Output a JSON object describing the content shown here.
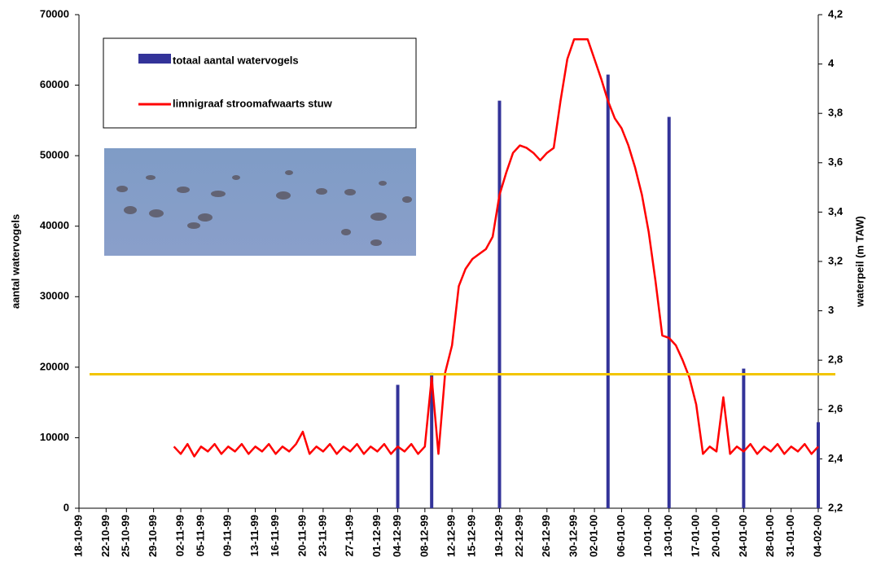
{
  "chart_data": {
    "type": "combo",
    "y_label": "aantal watervogels",
    "y2_label": "waterpeil (m TAW)",
    "xlim": [
      "18-10-99",
      "04-02-00"
    ],
    "xticks": [
      "18-10-99",
      "22-10-99",
      "25-10-99",
      "29-10-99",
      "02-11-99",
      "05-11-99",
      "09-11-99",
      "13-11-99",
      "16-11-99",
      "20-11-99",
      "23-11-99",
      "27-11-99",
      "01-12-99",
      "04-12-99",
      "08-12-99",
      "12-12-99",
      "15-12-99",
      "19-12-99",
      "22-12-99",
      "26-12-99",
      "30-12-99",
      "02-01-00",
      "06-01-00",
      "10-01-00",
      "13-01-00",
      "17-01-00",
      "20-01-00",
      "24-01-00",
      "28-01-00",
      "31-01-00",
      "04-02-00"
    ],
    "ylim": [
      0,
      70000
    ],
    "yticks": [
      0,
      10000,
      20000,
      30000,
      40000,
      50000,
      60000,
      70000
    ],
    "y2lim": [
      2.2,
      4.2
    ],
    "y2ticks": [
      {
        "value": 2.2,
        "label": "2,2"
      },
      {
        "value": 2.4,
        "label": "2,4"
      },
      {
        "value": 2.6,
        "label": "2,6"
      },
      {
        "value": 2.8,
        "label": "2,8"
      },
      3,
      {
        "value": 3.2,
        "label": "3,2"
      },
      {
        "value": 3.4,
        "label": "3,4"
      },
      {
        "value": 3.6,
        "label": "3,6"
      },
      {
        "value": 3.8,
        "label": "3,8"
      },
      4,
      {
        "value": 4.2,
        "label": "4,2"
      }
    ],
    "reference_line": {
      "value": 19000,
      "color": "#f2c500"
    },
    "series": [
      {
        "name": "totaal aantal watervogels",
        "type": "bar",
        "axis": "y",
        "color": "#333399",
        "x": [
          "04-12-99",
          "09-12-99",
          "19-12-99",
          "04-01-00",
          "13-01-00",
          "24-01-00",
          "04-02-00"
        ],
        "values": [
          17500,
          19200,
          57800,
          61500,
          55500,
          19800,
          12200
        ]
      },
      {
        "name": "limnigraaf stroomafwaarts stuw",
        "type": "line",
        "axis": "y2",
        "color": "#ff0000",
        "x": [
          "01-11-99",
          "02-11-99",
          "03-11-99",
          "04-11-99",
          "05-11-99",
          "06-11-99",
          "07-11-99",
          "08-11-99",
          "09-11-99",
          "10-11-99",
          "11-11-99",
          "12-11-99",
          "13-11-99",
          "14-11-99",
          "15-11-99",
          "16-11-99",
          "17-11-99",
          "18-11-99",
          "19-11-99",
          "20-11-99",
          "21-11-99",
          "22-11-99",
          "23-11-99",
          "24-11-99",
          "25-11-99",
          "26-11-99",
          "27-11-99",
          "28-11-99",
          "29-11-99",
          "30-11-99",
          "01-12-99",
          "02-12-99",
          "03-12-99",
          "04-12-99",
          "05-12-99",
          "06-12-99",
          "07-12-99",
          "08-12-99",
          "09-12-99",
          "10-12-99",
          "11-12-99",
          "12-12-99",
          "13-12-99",
          "14-12-99",
          "15-12-99",
          "16-12-99",
          "17-12-99",
          "18-12-99",
          "19-12-99",
          "20-12-99",
          "21-12-99",
          "22-12-99",
          "23-12-99",
          "24-12-99",
          "25-12-99",
          "26-12-99",
          "27-12-99",
          "28-12-99",
          "29-12-99",
          "30-12-99",
          "31-12-99",
          "01-01-00",
          "02-01-00",
          "03-01-00",
          "04-01-00",
          "05-01-00",
          "06-01-00",
          "07-01-00",
          "08-01-00",
          "09-01-00",
          "10-01-00",
          "11-01-00",
          "12-01-00",
          "13-01-00",
          "14-01-00",
          "15-01-00",
          "16-01-00",
          "17-01-00",
          "18-01-00",
          "19-01-00",
          "20-01-00",
          "21-01-00",
          "22-01-00",
          "23-01-00",
          "24-01-00",
          "25-01-00",
          "26-01-00",
          "27-01-00",
          "28-01-00",
          "29-01-00",
          "30-01-00",
          "31-01-00",
          "01-02-00",
          "02-02-00",
          "03-02-00",
          "04-02-00"
        ],
        "values": [
          2.45,
          2.42,
          2.46,
          2.41,
          2.45,
          2.43,
          2.46,
          2.42,
          2.45,
          2.43,
          2.46,
          2.42,
          2.45,
          2.43,
          2.46,
          2.42,
          2.45,
          2.43,
          2.46,
          2.51,
          2.42,
          2.45,
          2.43,
          2.46,
          2.42,
          2.45,
          2.43,
          2.46,
          2.42,
          2.45,
          2.43,
          2.46,
          2.42,
          2.45,
          2.43,
          2.46,
          2.42,
          2.45,
          2.73,
          2.42,
          2.75,
          2.86,
          3.1,
          3.17,
          3.21,
          3.23,
          3.25,
          3.3,
          3.47,
          3.56,
          3.64,
          3.67,
          3.66,
          3.64,
          3.61,
          3.64,
          3.66,
          3.85,
          4.02,
          4.1,
          4.1,
          4.1,
          4.02,
          3.94,
          3.85,
          3.78,
          3.74,
          3.67,
          3.58,
          3.47,
          3.32,
          3.12,
          2.9,
          2.89,
          2.86,
          2.8,
          2.73,
          2.62,
          2.42,
          2.45,
          2.43,
          2.65,
          2.42,
          2.45,
          2.43,
          2.46,
          2.42,
          2.45,
          2.43,
          2.46,
          2.42,
          2.45,
          2.43,
          2.46,
          2.42,
          2.45
        ]
      }
    ]
  }
}
